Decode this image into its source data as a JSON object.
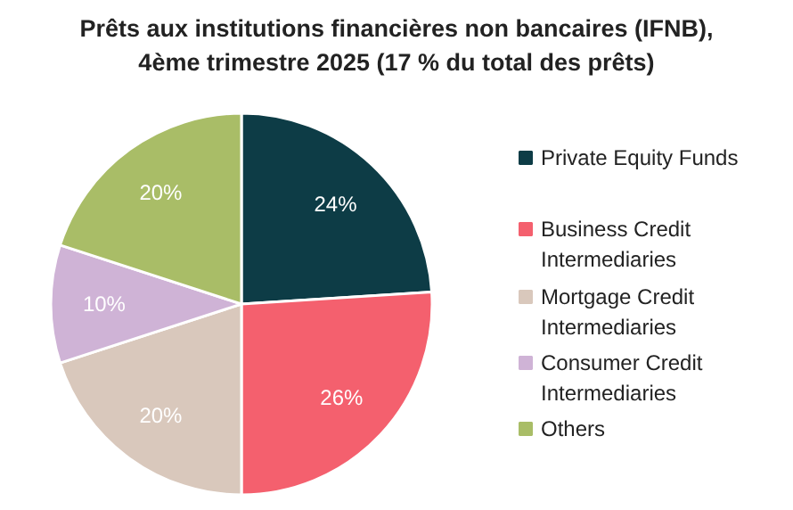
{
  "chart_data": {
    "type": "pie",
    "title": "Prêts aux institutions financières non bancaires (IFNB), 4ème trimestre 2025 (17 % du total des prêts)",
    "categories": [
      "Private Equity Funds",
      "Business Credit Intermediaries",
      "Mortgage Credit Intermediaries",
      "Consumer Credit Intermediaries",
      "Others"
    ],
    "values": [
      24,
      26,
      20,
      10,
      20
    ],
    "value_labels": [
      "24%",
      "26%",
      "20%",
      "10%",
      "20%"
    ],
    "colors": [
      "#0d3c46",
      "#f4606e",
      "#d9c8bc",
      "#cfb3d6",
      "#a9bd67"
    ],
    "legend": "right"
  }
}
